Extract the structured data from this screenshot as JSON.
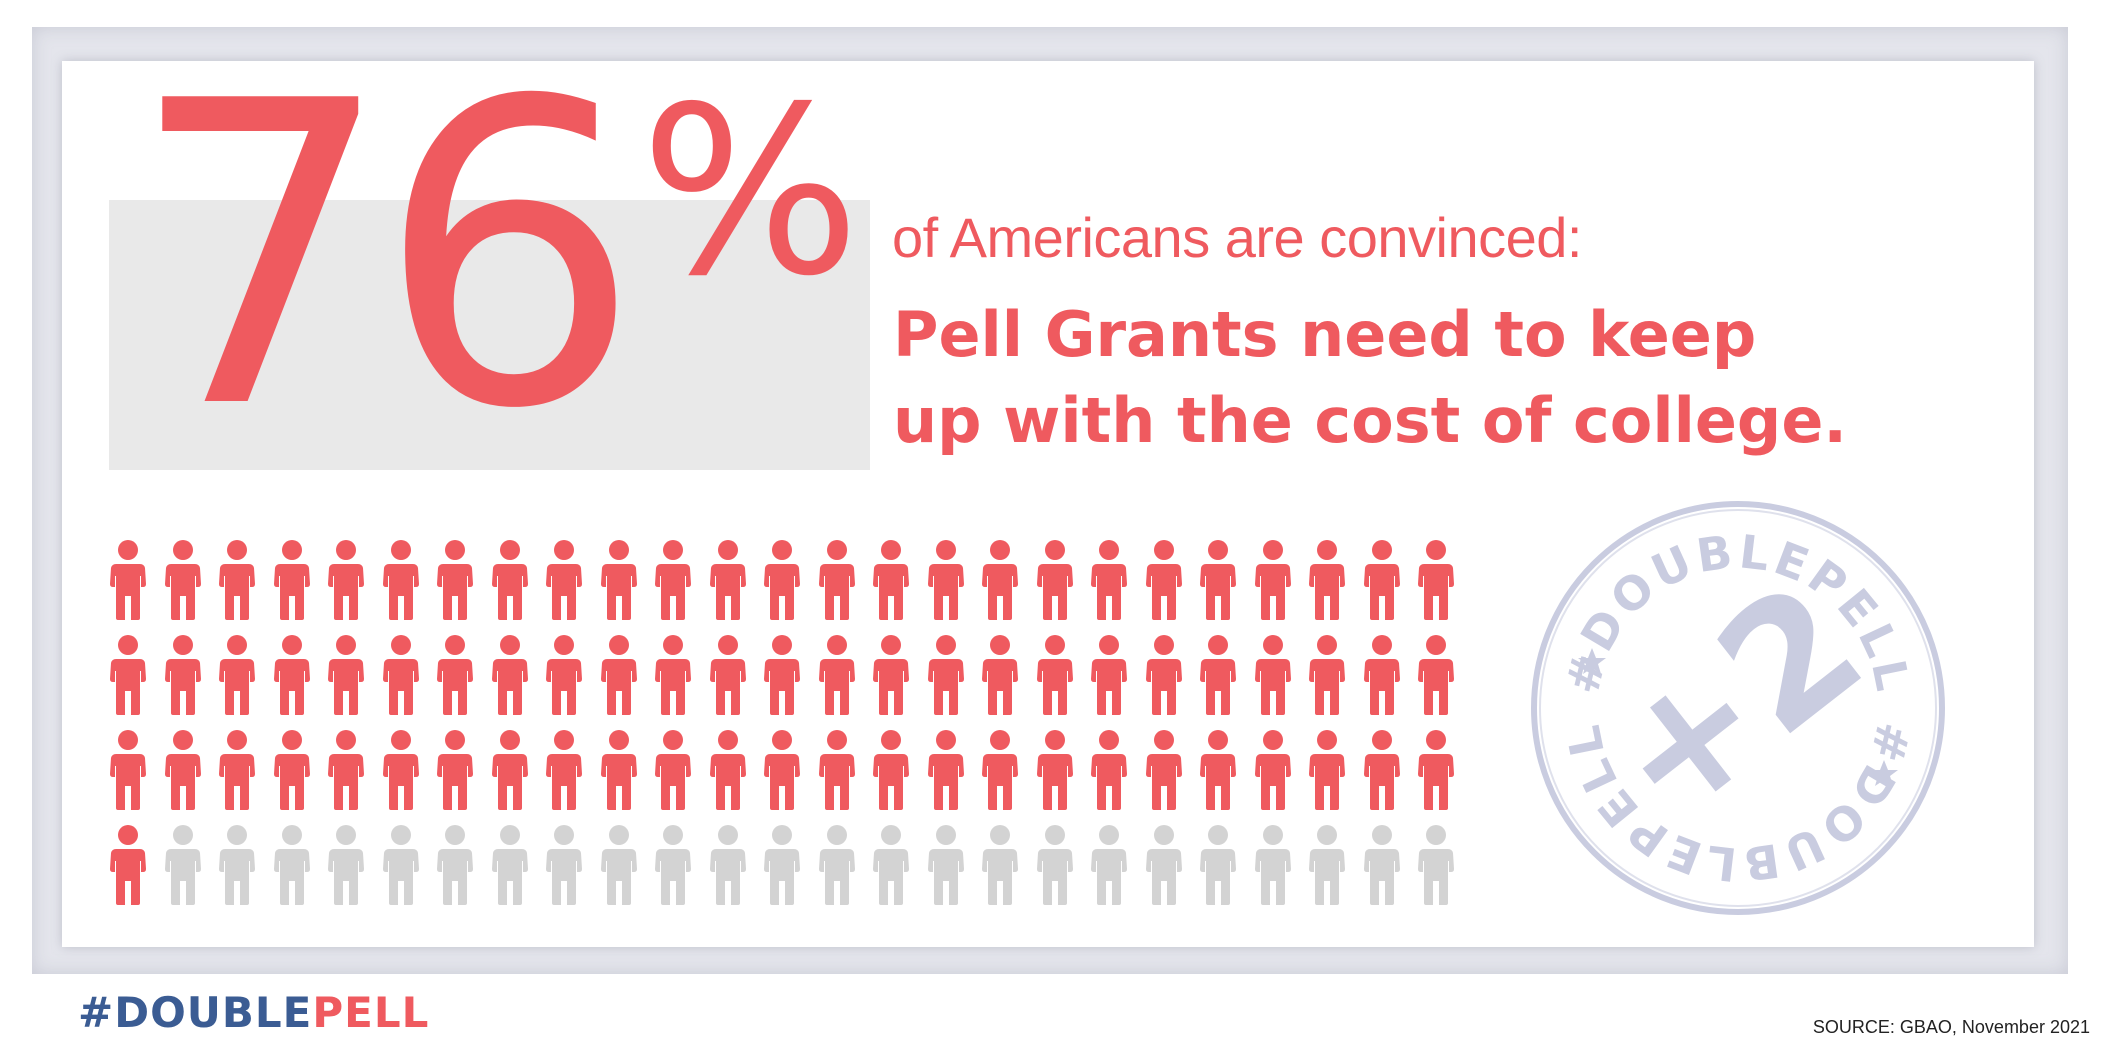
{
  "headline": {
    "number": "76",
    "percent_sign": "%",
    "intro": "of Americans are convinced:",
    "line1": "Pell Grants need to keep",
    "line2": "up with the cost of college."
  },
  "pictograph": {
    "total": 100,
    "highlighted": 76,
    "columns": 25,
    "rows": 4,
    "highlight_color": "#ef5a5f",
    "other_color": "#d3d3d3",
    "icon": "person-icon"
  },
  "stamp": {
    "text": "#DOUBLEPELL",
    "center": "+2",
    "color": "#c9cce0"
  },
  "footer": {
    "hash": "#",
    "double": "DOUBLE",
    "pell": "PELL",
    "source": "SOURCE: GBAO, November 2021"
  },
  "colors": {
    "accent": "#ef5a5f",
    "brand_blue": "#3b5c93",
    "frame": "#e4e5ec"
  }
}
